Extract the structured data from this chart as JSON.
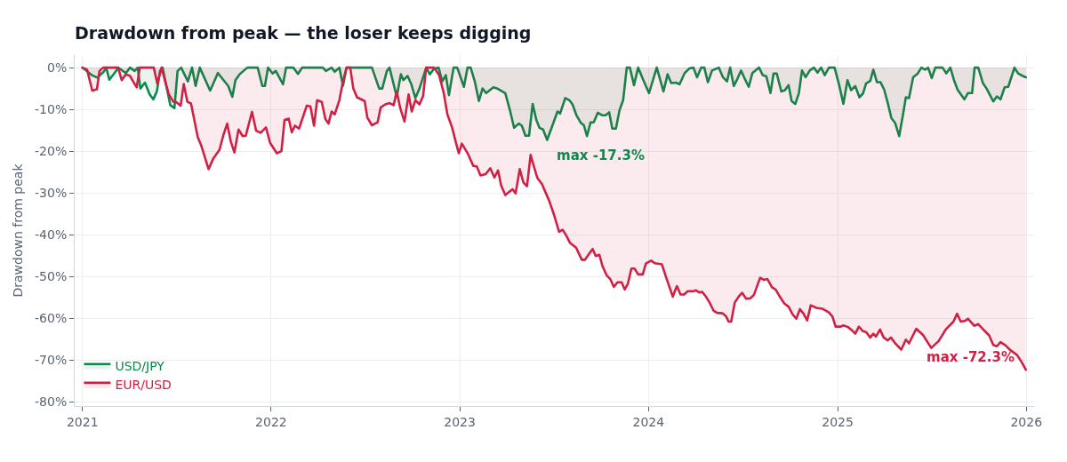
{
  "chart_data": {
    "type": "area",
    "title": "Drawdown from peak — the loser keeps digging",
    "ylabel": "Drawdown from peak",
    "xlim": [
      "2020-12-17",
      "2026-01-16"
    ],
    "xticks": [
      "2021",
      "2022",
      "2023",
      "2024",
      "2025",
      "2026"
    ],
    "ylim": [
      -81,
      3
    ],
    "yticks": [
      {
        "value": 0,
        "label": "0%"
      },
      {
        "value": -10,
        "label": "-10%"
      },
      {
        "value": -20,
        "label": "-20%"
      },
      {
        "value": -30,
        "label": "-30%"
      },
      {
        "value": -40,
        "label": "-40%"
      },
      {
        "value": -50,
        "label": "-50%"
      },
      {
        "value": -60,
        "label": "-60%"
      },
      {
        "value": -70,
        "label": "-70%"
      },
      {
        "value": -80,
        "label": "-80%"
      }
    ],
    "grid": true,
    "legend": "bottom left",
    "annotations": [
      {
        "text": "max -17.3%",
        "x": "2023-06-19",
        "y": -17.3
      },
      {
        "text": "max -72.3%",
        "x": "2025-12-31",
        "y": -72.3
      }
    ],
    "series": [
      {
        "name": "USD/JPY",
        "color": "#0a8a4c",
        "x": [
          "2021-01-01",
          "2021-01-19",
          "2021-01-30",
          "2021-02-11",
          "2021-02-16",
          "2021-02-22",
          "2021-03-06",
          "2021-03-11",
          "2021-03-26",
          "2021-04-03",
          "2021-04-12",
          "2021-04-18",
          "2021-04-23",
          "2021-05-02",
          "2021-05-11",
          "2021-05-18",
          "2021-05-25",
          "2021-05-31",
          "2021-06-05",
          "2021-06-20",
          "2021-06-28",
          "2021-07-04",
          "2021-07-11",
          "2021-07-24",
          "2021-08-01",
          "2021-08-08",
          "2021-08-16",
          "2021-09-05",
          "2021-09-20",
          "2021-10-10",
          "2021-10-18",
          "2021-10-24",
          "2021-11-01",
          "2021-11-16",
          "2021-12-06",
          "2021-12-15",
          "2021-12-20",
          "2021-12-26",
          "2022-01-04",
          "2022-01-10",
          "2022-01-24",
          "2022-01-30",
          "2022-02-13",
          "2022-02-22",
          "2022-03-02",
          "2022-04-11",
          "2022-04-17",
          "2022-04-28",
          "2022-05-04",
          "2022-05-13",
          "2022-05-20",
          "2022-05-27",
          "2022-06-11",
          "2022-07-15",
          "2022-07-29",
          "2022-08-04",
          "2022-08-13",
          "2022-08-18",
          "2022-09-01",
          "2022-09-09",
          "2022-09-14",
          "2022-09-22",
          "2022-09-29",
          "2022-10-07",
          "2022-10-15",
          "2022-10-28",
          "2022-11-04",
          "2022-11-12",
          "2022-11-21",
          "2022-11-28",
          "2022-12-05",
          "2022-12-11",
          "2022-12-20",
          "2022-12-27",
          "2023-01-09",
          "2023-01-16",
          "2023-01-22",
          "2023-01-30",
          "2023-02-07",
          "2023-02-14",
          "2023-02-21",
          "2023-03-07",
          "2023-03-16",
          "2023-03-24",
          "2023-03-30",
          "2023-04-08",
          "2023-04-16",
          "2023-04-25",
          "2023-05-01",
          "2023-05-08",
          "2023-05-15",
          "2023-05-22",
          "2023-05-29",
          "2023-06-04",
          "2023-06-11",
          "2023-06-19",
          "2023-06-27",
          "2023-07-09",
          "2023-07-14",
          "2023-07-24",
          "2023-08-01",
          "2023-08-07",
          "2023-08-15",
          "2023-08-23",
          "2023-08-29",
          "2023-09-04",
          "2023-09-11",
          "2023-09-17",
          "2023-09-25",
          "2023-10-03",
          "2023-10-10",
          "2023-10-17",
          "2023-10-23",
          "2023-10-30",
          "2023-11-06",
          "2023-11-13",
          "2023-11-20",
          "2023-11-26",
          "2023-12-04",
          "2023-12-12",
          "2023-12-21",
          "2024-01-02",
          "2024-01-17",
          "2024-01-30",
          "2024-02-07",
          "2024-02-14",
          "2024-02-24",
          "2024-03-01",
          "2024-03-11",
          "2024-03-20",
          "2024-03-28",
          "2024-04-04",
          "2024-04-12",
          "2024-04-18",
          "2024-04-25",
          "2024-05-03",
          "2024-05-16",
          "2024-05-24",
          "2024-06-01",
          "2024-06-07",
          "2024-06-14",
          "2024-06-21",
          "2024-06-28",
          "2024-07-05",
          "2024-07-13",
          "2024-07-20",
          "2024-08-02",
          "2024-08-09",
          "2024-08-16",
          "2024-08-24",
          "2024-08-30",
          "2024-09-05",
          "2024-09-14",
          "2024-09-21",
          "2024-09-28",
          "2024-10-04",
          "2024-10-11",
          "2024-10-18",
          "2024-10-24",
          "2024-10-31",
          "2024-11-08",
          "2024-11-16",
          "2024-11-23",
          "2024-11-30",
          "2024-12-07",
          "2024-12-15",
          "2024-12-26",
          "2025-01-04",
          "2025-01-12",
          "2025-01-20",
          "2025-01-27",
          "2025-02-04",
          "2025-02-12",
          "2025-02-19",
          "2025-02-25",
          "2025-03-05",
          "2025-03-11",
          "2025-03-18",
          "2025-03-25",
          "2025-04-01",
          "2025-04-08",
          "2025-04-15",
          "2025-04-22",
          "2025-04-30",
          "2025-05-07",
          "2025-05-13",
          "2025-05-19",
          "2025-05-27",
          "2025-06-05",
          "2025-06-12",
          "2025-06-19",
          "2025-06-25",
          "2025-07-02",
          "2025-07-09",
          "2025-07-23",
          "2025-07-30",
          "2025-08-07",
          "2025-08-14",
          "2025-08-21",
          "2025-09-03",
          "2025-09-10",
          "2025-09-18",
          "2025-09-23",
          "2025-09-30",
          "2025-10-09",
          "2025-10-16",
          "2025-10-29",
          "2025-11-05",
          "2025-11-12",
          "2025-11-20",
          "2025-11-27",
          "2025-12-09",
          "2025-12-16",
          "2025-12-25",
          "2025-12-31"
        ],
        "values": [
          0,
          -1.8,
          -2.4,
          -1.0,
          0,
          -2.9,
          -1.0,
          0,
          -1.3,
          0,
          -0.8,
          0,
          -5.0,
          -3.6,
          -6.4,
          -7.6,
          -5.7,
          -0.8,
          0,
          -9.0,
          -9.7,
          -0.8,
          0,
          -3.3,
          0,
          -4.4,
          0,
          -5.5,
          -1.3,
          -4.4,
          -7.0,
          -3.0,
          -1.6,
          0,
          0,
          -4.4,
          -4.4,
          0,
          -1.4,
          -0.8,
          -4.0,
          0,
          0,
          -1.5,
          0,
          0,
          -0.8,
          0,
          -1.0,
          0,
          -4.4,
          0,
          0,
          0,
          -5.0,
          -5.0,
          -0.8,
          0,
          -7.0,
          -1.6,
          -3.0,
          -2.0,
          -3.9,
          -7.3,
          -5.0,
          0,
          -1.6,
          -0.3,
          0,
          -3.3,
          -1.8,
          -6.6,
          0,
          0,
          -4.6,
          0,
          0,
          -3.3,
          -8.0,
          -5.0,
          -6.1,
          -4.7,
          -5.1,
          -5.7,
          -6.1,
          -10.2,
          -14.4,
          -13.4,
          -13.9,
          -16.3,
          -16.3,
          -8.7,
          -12.5,
          -14.4,
          -14.8,
          -17.3,
          -14.6,
          -10.5,
          -11.0,
          -7.3,
          -7.8,
          -8.8,
          -11.5,
          -13.2,
          -13.8,
          -16.4,
          -13.1,
          -13.1,
          -10.8,
          -11.4,
          -11.4,
          -10.7,
          -14.6,
          -14.6,
          -10.2,
          -7.8,
          0,
          0,
          -4.2,
          0,
          -2.7,
          -6.1,
          0,
          -5.7,
          -1.6,
          -3.7,
          -3.6,
          -4.0,
          -1.3,
          -0.2,
          0,
          -2.3,
          0,
          0,
          -3.5,
          -0.7,
          0,
          -2.3,
          -3.3,
          0,
          -4.4,
          -2.7,
          -0.7,
          -2.6,
          -4.6,
          -1.3,
          0,
          -1.8,
          -2.1,
          -6.1,
          -1.4,
          -1.4,
          -5.7,
          -5.4,
          -4.2,
          -8.0,
          -8.7,
          -6.1,
          -0.7,
          -2.3,
          -0.7,
          0,
          -1.2,
          0,
          -1.8,
          0,
          0,
          -4.2,
          -8.7,
          -3.0,
          -5.4,
          -4.4,
          -7.1,
          -6.2,
          -3.8,
          -3.2,
          -0.5,
          -3.5,
          -3.5,
          -5.3,
          -8.5,
          -12.1,
          -13.2,
          -16.4,
          -11.5,
          -7.1,
          -7.3,
          -2.3,
          -1.4,
          0,
          -0.5,
          0,
          -2.5,
          0,
          0,
          -1.4,
          0,
          -3.0,
          -5.3,
          -7.6,
          -6.1,
          -6.1,
          0,
          0,
          -3.7,
          -5.0,
          -8.1,
          -6.9,
          -7.6,
          -4.7,
          -4.6,
          0,
          -1.4,
          -2.0,
          -2.3
        ]
      },
      {
        "name": "EUR/USD",
        "color": "#d02043",
        "x": [
          "2021-01-01",
          "2021-01-10",
          "2021-01-20",
          "2021-01-29",
          "2021-02-03",
          "2021-02-10",
          "2021-03-11",
          "2021-03-18",
          "2021-03-26",
          "2021-04-03",
          "2021-04-09",
          "2021-04-16",
          "2021-04-22",
          "2021-05-19",
          "2021-05-26",
          "2021-06-03",
          "2021-06-10",
          "2021-06-17",
          "2021-06-26",
          "2021-07-01",
          "2021-07-10",
          "2021-07-16",
          "2021-07-23",
          "2021-07-30",
          "2021-08-06",
          "2021-08-12",
          "2021-08-19",
          "2021-09-02",
          "2021-09-11",
          "2021-09-23",
          "2021-10-01",
          "2021-10-08",
          "2021-10-15",
          "2021-10-22",
          "2021-10-30",
          "2021-11-07",
          "2021-11-13",
          "2021-11-25",
          "2021-12-03",
          "2021-12-12",
          "2021-12-22",
          "2021-12-30",
          "2022-01-12",
          "2022-01-21",
          "2022-01-27",
          "2022-02-04",
          "2022-02-10",
          "2022-02-16",
          "2022-02-24",
          "2022-03-11",
          "2022-03-18",
          "2022-03-25",
          "2022-03-31",
          "2022-04-09",
          "2022-04-16",
          "2022-04-22",
          "2022-04-28",
          "2022-05-04",
          "2022-05-13",
          "2022-05-20",
          "2022-05-27",
          "2022-06-03",
          "2022-06-09",
          "2022-06-16",
          "2022-07-01",
          "2022-07-06",
          "2022-07-15",
          "2022-07-26",
          "2022-08-01",
          "2022-08-10",
          "2022-08-18",
          "2022-08-26",
          "2022-09-01",
          "2022-09-08",
          "2022-09-16",
          "2022-09-24",
          "2022-09-30",
          "2022-10-07",
          "2022-10-15",
          "2022-10-22",
          "2022-10-28",
          "2022-11-12",
          "2022-11-22",
          "2022-12-01",
          "2022-12-08",
          "2022-12-17",
          "2022-12-24",
          "2022-12-30",
          "2023-01-05",
          "2023-01-17",
          "2023-01-27",
          "2023-02-03",
          "2023-02-10",
          "2023-02-20",
          "2023-03-01",
          "2023-03-09",
          "2023-03-16",
          "2023-03-22",
          "2023-03-30",
          "2023-04-13",
          "2023-04-19",
          "2023-04-27",
          "2023-05-04",
          "2023-05-11",
          "2023-05-18",
          "2023-05-24",
          "2023-05-31",
          "2023-06-09",
          "2023-06-23",
          "2023-07-03",
          "2023-07-12",
          "2023-07-19",
          "2023-07-26",
          "2023-08-02",
          "2023-08-14",
          "2023-08-25",
          "2023-08-31",
          "2023-09-08",
          "2023-09-15",
          "2023-09-21",
          "2023-09-28",
          "2023-10-04",
          "2023-10-12",
          "2023-10-19",
          "2023-10-26",
          "2023-11-02",
          "2023-11-10",
          "2023-11-16",
          "2023-11-22",
          "2023-11-29",
          "2023-12-05",
          "2023-12-12",
          "2023-12-21",
          "2023-12-27",
          "2024-01-06",
          "2024-01-13",
          "2024-01-27",
          "2024-02-05",
          "2024-02-12",
          "2024-02-17",
          "2024-02-25",
          "2024-03-03",
          "2024-03-10",
          "2024-03-17",
          "2024-03-28",
          "2024-04-02",
          "2024-04-08",
          "2024-04-14",
          "2024-04-21",
          "2024-04-28",
          "2024-05-06",
          "2024-05-13",
          "2024-05-23",
          "2024-05-30",
          "2024-06-04",
          "2024-06-09",
          "2024-06-16",
          "2024-06-25",
          "2024-06-30",
          "2024-07-08",
          "2024-07-16",
          "2024-07-23",
          "2024-08-04",
          "2024-08-11",
          "2024-08-18",
          "2024-08-27",
          "2024-09-03",
          "2024-09-11",
          "2024-09-20",
          "2024-09-28",
          "2024-10-06",
          "2024-10-13",
          "2024-10-20",
          "2024-10-27",
          "2024-11-03",
          "2024-11-10",
          "2024-11-21",
          "2024-12-02",
          "2024-12-15",
          "2024-12-22",
          "2024-12-28",
          "2025-01-07",
          "2025-01-12",
          "2025-01-21",
          "2025-01-28",
          "2025-02-04",
          "2025-02-11",
          "2025-02-19",
          "2025-02-25",
          "2025-03-05",
          "2025-03-11",
          "2025-03-16",
          "2025-03-24",
          "2025-03-31",
          "2025-04-08",
          "2025-04-14",
          "2025-04-23",
          "2025-05-04",
          "2025-05-13",
          "2025-05-19",
          "2025-06-02",
          "2025-06-15",
          "2025-07-01",
          "2025-07-15",
          "2025-07-29",
          "2025-08-13",
          "2025-08-20",
          "2025-08-27",
          "2025-09-05",
          "2025-09-10",
          "2025-09-22",
          "2025-09-30",
          "2025-10-09",
          "2025-10-21",
          "2025-10-29",
          "2025-11-05",
          "2025-11-12",
          "2025-11-21",
          "2025-11-30",
          "2025-12-14",
          "2025-12-23",
          "2025-12-31"
        ],
        "values": [
          0,
          -0.5,
          -5.5,
          -5.2,
          -0.8,
          0,
          0,
          -3.0,
          -1.6,
          -2.0,
          -3.3,
          -4.7,
          0,
          0,
          -3.9,
          0,
          -3.3,
          -6.4,
          -8.2,
          -8.2,
          -9.1,
          -3.9,
          -8.2,
          -8.6,
          -12.9,
          -16.6,
          -18.7,
          -24.3,
          -21.8,
          -19.7,
          -16.0,
          -13.4,
          -17.7,
          -20.3,
          -14.8,
          -16.4,
          -16.3,
          -10.6,
          -15.1,
          -15.6,
          -14.3,
          -18.0,
          -20.5,
          -20.0,
          -12.5,
          -12.2,
          -15.5,
          -13.9,
          -14.6,
          -9.1,
          -9.3,
          -13.9,
          -7.8,
          -8.2,
          -12.3,
          -13.4,
          -10.5,
          -11.2,
          -7.8,
          -3.3,
          0,
          0,
          -5.0,
          -7.1,
          -8.0,
          -11.9,
          -13.8,
          -13.1,
          -9.5,
          -8.8,
          -8.5,
          -9.0,
          -5.7,
          -9.8,
          -12.9,
          -6.4,
          -10.5,
          -7.8,
          -8.8,
          -6.8,
          0,
          0,
          -1.8,
          -6.1,
          -11.2,
          -14.3,
          -17.7,
          -20.5,
          -18.2,
          -20.7,
          -23.5,
          -23.7,
          -25.8,
          -25.5,
          -24.1,
          -26.3,
          -24.6,
          -28.2,
          -30.5,
          -29.1,
          -30.1,
          -24.3,
          -27.5,
          -28.4,
          -20.9,
          -23.5,
          -26.4,
          -27.9,
          -31.9,
          -35.5,
          -39.3,
          -38.8,
          -40.2,
          -41.9,
          -43.1,
          -46.0,
          -46.0,
          -44.6,
          -43.4,
          -45.1,
          -44.8,
          -47.5,
          -49.7,
          -50.6,
          -52.5,
          -51.4,
          -51.4,
          -53.1,
          -51.8,
          -48.1,
          -48.1,
          -49.5,
          -49.5,
          -46.9,
          -46.2,
          -46.8,
          -47.1,
          -50.5,
          -53.0,
          -54.8,
          -52.3,
          -54.3,
          -54.3,
          -53.5,
          -53.5,
          -53.3,
          -53.8,
          -53.7,
          -54.8,
          -56.2,
          -58.2,
          -58.7,
          -58.8,
          -59.5,
          -60.8,
          -60.8,
          -56.2,
          -54.6,
          -53.9,
          -55.3,
          -55.2,
          -54.4,
          -50.3,
          -50.8,
          -50.6,
          -52.6,
          -53.1,
          -54.8,
          -56.5,
          -57.2,
          -59.1,
          -60.1,
          -57.8,
          -58.9,
          -60.5,
          -56.9,
          -57.5,
          -57.7,
          -58.6,
          -59.6,
          -62.0,
          -62.0,
          -61.7,
          -62.1,
          -62.8,
          -63.7,
          -62.0,
          -63.1,
          -63.3,
          -64.6,
          -63.7,
          -64.4,
          -62.7,
          -64.6,
          -65.3,
          -64.6,
          -66.1,
          -67.5,
          -65.1,
          -66.0,
          -62.5,
          -64.0,
          -67.1,
          -65.5,
          -62.7,
          -60.8,
          -58.9,
          -60.8,
          -60.6,
          -60.1,
          -61.8,
          -61.4,
          -62.6,
          -64.1,
          -66.4,
          -66.7,
          -65.7,
          -66.4,
          -67.5,
          -68.8,
          -70.5,
          -72.3
        ]
      }
    ]
  }
}
